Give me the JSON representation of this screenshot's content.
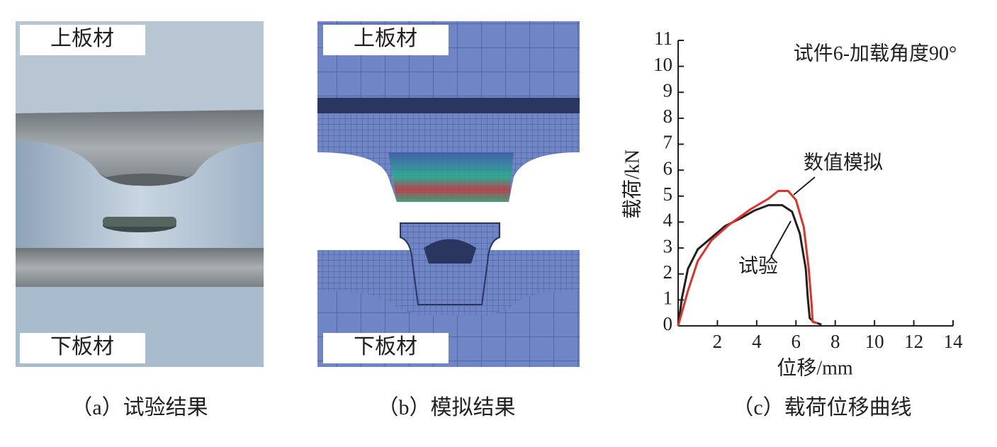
{
  "panels": [
    {
      "caption": "（a）试验结果",
      "labels": [
        "上板材",
        "下板材"
      ]
    },
    {
      "caption": "（b）模拟结果",
      "labels": [
        "上板材",
        "下板材"
      ]
    }
  ],
  "chart_data": {
    "type": "line",
    "caption": "（c）载荷位移曲线",
    "annotation": "试件6-加载角度90°",
    "xlabel": "位移/mm",
    "ylabel": "载荷/kN",
    "xlim": [
      0,
      14
    ],
    "ylim": [
      0,
      11
    ],
    "xticks": [
      2,
      4,
      6,
      8,
      10,
      12,
      14
    ],
    "yticks": [
      0,
      1,
      2,
      3,
      4,
      5,
      6,
      7,
      8,
      9,
      10,
      11
    ],
    "series": [
      {
        "name": "试验",
        "color": "#231f20",
        "x": [
          0,
          0.2,
          0.5,
          1.0,
          1.7,
          2.4,
          3.2,
          3.9,
          4.6,
          5.3,
          5.8,
          6.2,
          6.5,
          6.6,
          6.7,
          6.9,
          7.3
        ],
        "values": [
          0,
          1.1,
          2.2,
          2.95,
          3.4,
          3.85,
          4.15,
          4.45,
          4.65,
          4.65,
          4.4,
          3.55,
          2.2,
          1.1,
          0.3,
          0.15,
          0.05
        ]
      },
      {
        "name": "数值模拟",
        "color": "#e0322a",
        "x": [
          0,
          0.5,
          1.0,
          1.7,
          2.6,
          3.7,
          4.6,
          5.1,
          5.6,
          6.0,
          6.4,
          6.65,
          6.8,
          6.85,
          7.1
        ],
        "values": [
          0,
          1.35,
          2.5,
          3.3,
          3.9,
          4.5,
          4.9,
          5.2,
          5.2,
          4.85,
          3.8,
          2.2,
          0.8,
          0.15,
          0.1
        ]
      }
    ]
  }
}
